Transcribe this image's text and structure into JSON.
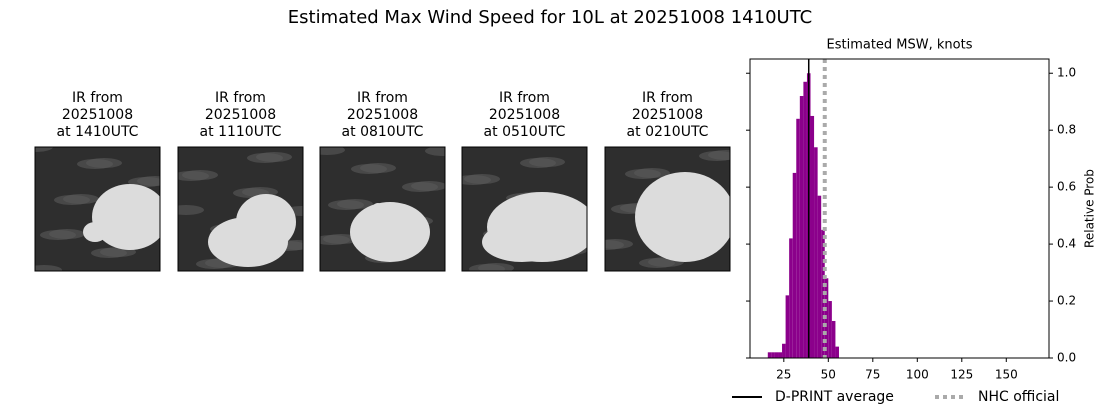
{
  "title": "Estimated Max Wind Speed for 10L at 20251008 1410UTC",
  "panels": [
    {
      "lines": [
        "IR from",
        "20251008",
        "at 1410UTC"
      ]
    },
    {
      "lines": [
        "IR from",
        "20251008",
        "at 1110UTC"
      ]
    },
    {
      "lines": [
        "IR from",
        "20251008",
        "at 0810UTC"
      ]
    },
    {
      "lines": [
        "IR from",
        "20251008",
        "at 0510UTC"
      ]
    },
    {
      "lines": [
        "IR from",
        "20251008",
        "at 0210UTC"
      ]
    }
  ],
  "chart_data": {
    "type": "histogram",
    "title": "Estimated MSW, knots",
    "y_label": "Relative Prob",
    "bins": [
      16,
      18,
      20,
      22,
      24,
      26,
      28,
      30,
      32,
      34,
      36,
      38,
      40,
      42,
      44,
      46,
      48,
      50,
      52,
      54,
      56
    ],
    "values": [
      0.02,
      0.02,
      0.02,
      0.02,
      0.05,
      0.22,
      0.42,
      0.65,
      0.84,
      0.92,
      0.97,
      1.0,
      0.85,
      0.74,
      0.57,
      0.45,
      0.28,
      0.2,
      0.13,
      0.04
    ],
    "color": "#8b008b",
    "xlim": [
      6,
      174
    ],
    "ylim": [
      0,
      1.05
    ],
    "xticks": [
      25,
      50,
      75,
      100,
      125,
      150
    ],
    "yticks": [
      {
        "value": 0,
        "label": "0.0"
      },
      0.2,
      0.4,
      0.6,
      0.8,
      {
        "value": 1,
        "label": "1.0"
      }
    ],
    "lines": [
      {
        "name": "D-PRINT average",
        "value": 39,
        "color": "#000000",
        "style": "solid"
      },
      {
        "name": "NHC official",
        "value": 48,
        "color": "#aaaaaa",
        "style": "dotted"
      }
    ]
  }
}
